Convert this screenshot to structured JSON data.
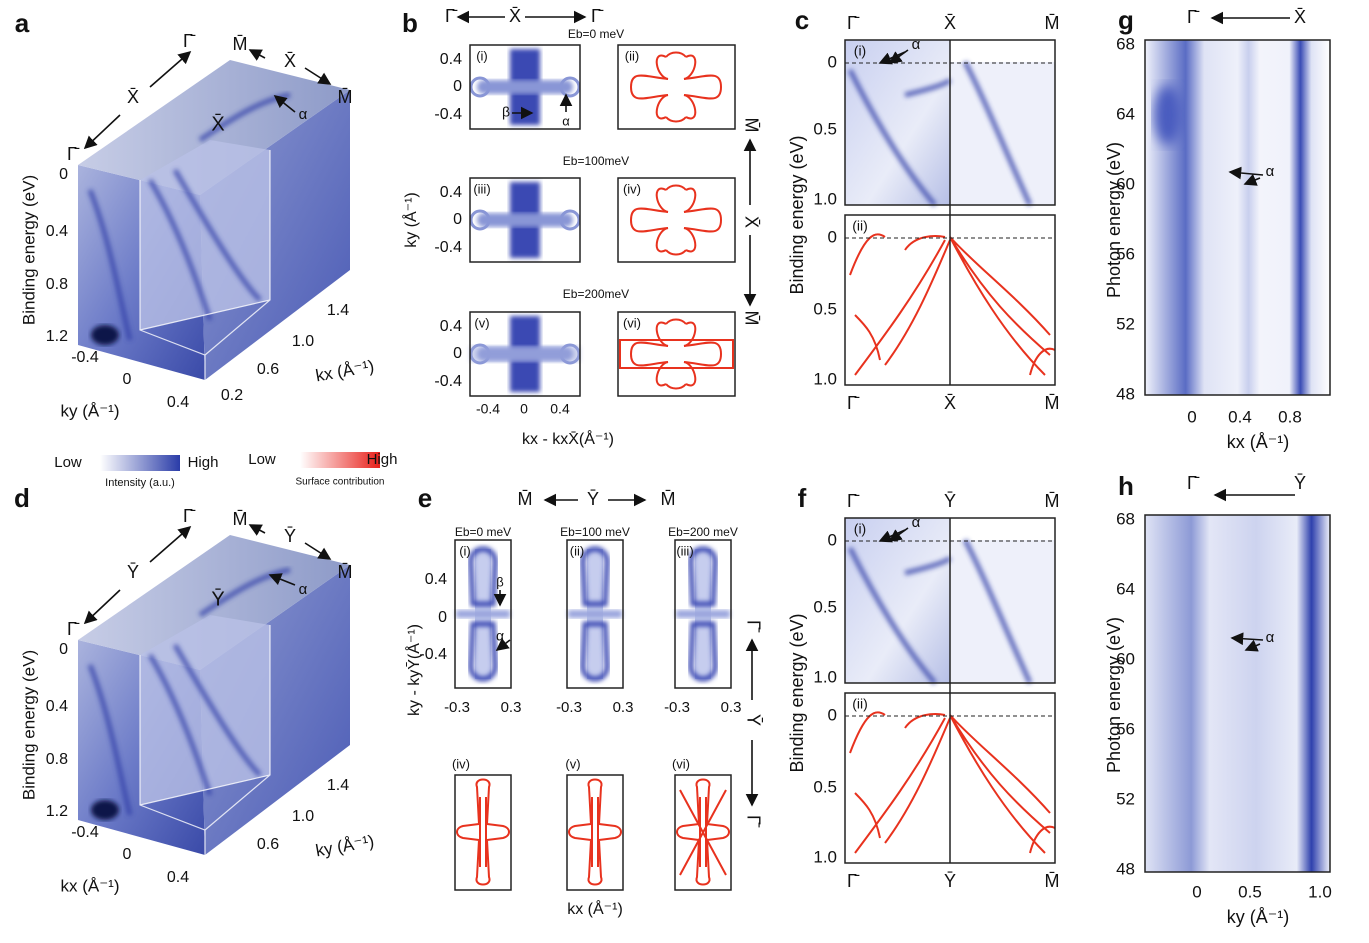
{
  "legend": {
    "intensity": {
      "low": "Low",
      "high": "High",
      "label": "Intensity (a.u.)"
    },
    "surface": {
      "low": "Low",
      "high": "High",
      "label": "Surface contribution"
    }
  },
  "panels": {
    "a": {
      "label": "a",
      "y_label": "Binding energy (eV)",
      "y_ticks": [
        "0",
        "0.4",
        "0.8",
        "1.2"
      ],
      "front_ticks": [
        "-0.4",
        "0",
        "0.4"
      ],
      "front_label": "ky (Å⁻¹)",
      "side_ticks": [
        "0.2",
        "0.6",
        "1.0",
        "1.4"
      ],
      "side_label": "kx (Å⁻¹)",
      "path": [
        "Γ̄",
        "X̄",
        "Γ̄",
        "M̄",
        "X̄",
        "M̄"
      ],
      "point": "X̄",
      "alpha": "α"
    },
    "b": {
      "label": "b",
      "top": [
        "Γ̄",
        "X̄",
        "Γ̄"
      ],
      "energies": [
        "Eb=0 meV",
        "Eb=100meV",
        "Eb=200meV"
      ],
      "rows": [
        {
          "exp": "(i)",
          "calc": "(ii)",
          "y_ticks": [
            "0.4",
            "0",
            "-0.4"
          ]
        },
        {
          "exp": "(iii)",
          "calc": "(iv)",
          "y_ticks": [
            "0.4",
            "0",
            "-0.4"
          ]
        },
        {
          "exp": "(v)",
          "calc": "(vi)",
          "y_ticks": [
            "0.4",
            "0",
            "-0.4"
          ]
        }
      ],
      "beta": "β",
      "alpha": "α",
      "y_label": "ky (Å⁻¹)",
      "x_ticks": [
        "-0.4",
        "0",
        "0.4"
      ],
      "x_label": "kx - kxX̄(Å⁻¹)",
      "side": [
        "M̄",
        "X̄",
        "M̄"
      ]
    },
    "c": {
      "label": "c",
      "top": [
        "Γ̄",
        "X̄",
        "M̄"
      ],
      "bottom": [
        "Γ̄",
        "X̄",
        "M̄"
      ],
      "sub": [
        {
          "label": "(i)",
          "y_ticks": [
            "0",
            "0.5",
            "1.0"
          ]
        },
        {
          "label": "(ii)",
          "y_ticks": [
            "0",
            "0.5",
            "1.0"
          ]
        }
      ],
      "alpha": "α",
      "y_label": "Binding energy (eV)"
    },
    "g": {
      "label": "g",
      "top": [
        "Γ̄",
        "X̄"
      ],
      "y_ticks": [
        "68",
        "64",
        "60",
        "56",
        "52",
        "48"
      ],
      "x_ticks": [
        "0",
        "0.4",
        "0.8"
      ],
      "x_label": "kx (Å⁻¹)",
      "y_label": "Photon energy (eV)",
      "alpha": "α"
    },
    "d": {
      "label": "d",
      "y_label": "Binding energy (eV)",
      "y_ticks": [
        "0",
        "0.4",
        "0.8",
        "1.2"
      ],
      "front_ticks": [
        "-0.4",
        "0",
        "0.4"
      ],
      "front_label": "kx (Å⁻¹)",
      "side_ticks": [
        "0.6",
        "1.0",
        "1.4"
      ],
      "side_label": "ky (Å⁻¹)",
      "path": [
        "Γ̄",
        "Ȳ",
        "Γ̄",
        "M̄",
        "Ȳ",
        "M̄"
      ],
      "point": "Ȳ",
      "alpha": "α"
    },
    "e": {
      "label": "e",
      "top": [
        "M̄",
        "Ȳ",
        "M̄"
      ],
      "energies": [
        "Eb=0 meV",
        "Eb=100 meV",
        "Eb=200 meV"
      ],
      "exp": [
        "(i)",
        "(ii)",
        "(iii)"
      ],
      "calc": [
        "(iv)",
        "(v)",
        "(vi)"
      ],
      "y_ticks": [
        "0.4",
        "0",
        "-0.4"
      ],
      "x_ticks": [
        [
          "-0.3",
          "0.3"
        ],
        [
          "-0.3",
          "0.3"
        ],
        [
          "-0.3",
          "0.3"
        ]
      ],
      "beta": "β",
      "alpha": "α",
      "y_label": "ky - kyȲ(Å⁻¹)",
      "x_label": "kx (Å⁻¹)",
      "side": [
        "Γ̄",
        "Ȳ",
        "Γ̄"
      ]
    },
    "f": {
      "label": "f",
      "top": [
        "Γ̄",
        "Ȳ",
        "M̄"
      ],
      "bottom": [
        "Γ̄",
        "Ȳ",
        "M̄"
      ],
      "sub": [
        {
          "label": "(i)",
          "y_ticks": [
            "0",
            "0.5",
            "1.0"
          ]
        },
        {
          "label": "(ii)",
          "y_ticks": [
            "0",
            "0.5",
            "1.0"
          ]
        }
      ],
      "alpha": "α",
      "y_label": "Binding energy (eV)"
    },
    "h": {
      "label": "h",
      "top": [
        "Γ̄",
        "Ȳ"
      ],
      "y_ticks": [
        "68",
        "64",
        "60",
        "56",
        "52",
        "48"
      ],
      "x_ticks": [
        "0",
        "0.5",
        "1.0"
      ],
      "x_label": "ky (Å⁻¹)",
      "y_label": "Photon energy (eV)",
      "alpha": "α"
    }
  }
}
